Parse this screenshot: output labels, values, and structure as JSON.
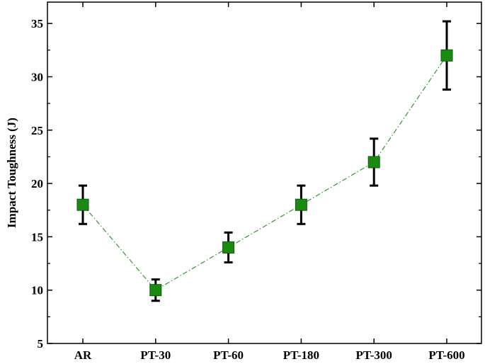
{
  "chart_data": {
    "type": "line",
    "title": "",
    "xlabel": "",
    "ylabel": "Impact Toughness (J)",
    "categories": [
      "AR",
      "PT-30",
      "PT-60",
      "PT-180",
      "PT-300",
      "PT-600"
    ],
    "series": [
      {
        "values": [
          18,
          10,
          14,
          18,
          22,
          32
        ],
        "error": [
          1.8,
          1.0,
          1.4,
          1.8,
          2.2,
          3.2
        ]
      }
    ],
    "ylim": [
      5,
      37
    ],
    "yticks": [
      5,
      10,
      15,
      20,
      25,
      30,
      35
    ],
    "grid": false,
    "legend": "none",
    "marker": "square",
    "line_style": "dash-dot",
    "colors": {
      "marker": "#1a8a12",
      "marker_edge": "#0d5c0a",
      "line": "#2e9a2a",
      "error_bar": "#000000",
      "axis": "#000000"
    }
  }
}
